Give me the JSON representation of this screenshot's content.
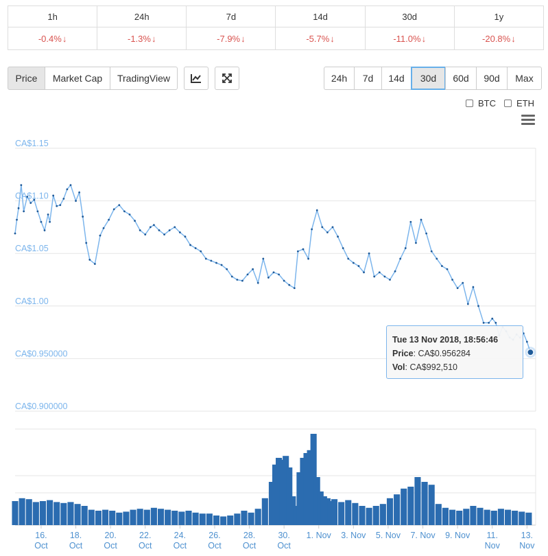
{
  "changes": {
    "periods": [
      "1h",
      "24h",
      "7d",
      "14d",
      "30d",
      "1y"
    ],
    "values": [
      "-0.4%",
      "-1.3%",
      "-7.9%",
      "-5.7%",
      "-11.0%",
      "-20.8%"
    ],
    "arrow": "↓",
    "color": "#d9534f"
  },
  "chart_tabs": [
    "Price",
    "Market Cap",
    "TradingView"
  ],
  "active_chart_tab": "Price",
  "icons": {
    "line_chart": "line-chart-icon",
    "expand": "expand-icon",
    "menu": "hamburger-menu-icon"
  },
  "ranges": [
    "24h",
    "7d",
    "14d",
    "30d",
    "60d",
    "90d",
    "Max"
  ],
  "active_range": "30d",
  "compare": [
    "BTC",
    "ETH"
  ],
  "tooltip": {
    "date": "Tue 13 Nov 2018, 18:56:46",
    "price_label": "Price",
    "price_value": ": CA$0.956284",
    "vol_label": "Vol",
    "vol_value": ": CA$992,510"
  },
  "colors": {
    "line": "#7cb5ec",
    "point": "#1e5a99",
    "volume": "#2b6cb0",
    "grid": "#e6e6e6"
  },
  "chart_data": {
    "type": "line",
    "currency": "CAD",
    "y_ticks": [
      "CA$1.15",
      "CA$1.10",
      "CA$1.05",
      "CA$1.00",
      "CA$0.950000",
      "CA$0.900000"
    ],
    "ylim": [
      0.9,
      1.15
    ],
    "x_ticks": [
      {
        "day": 16,
        "line1": "16.",
        "line2": "Oct"
      },
      {
        "day": 18,
        "line1": "18.",
        "line2": "Oct"
      },
      {
        "day": 20,
        "line1": "20.",
        "line2": "Oct"
      },
      {
        "day": 22,
        "line1": "22.",
        "line2": "Oct"
      },
      {
        "day": 24,
        "line1": "24.",
        "line2": "Oct"
      },
      {
        "day": 26,
        "line1": "26.",
        "line2": "Oct"
      },
      {
        "day": 28,
        "line1": "28.",
        "line2": "Oct"
      },
      {
        "day": 30,
        "line1": "30.",
        "line2": "Oct"
      },
      {
        "day": 32,
        "line1": "1. Nov",
        "line2": ""
      },
      {
        "day": 34,
        "line1": "3. Nov",
        "line2": ""
      },
      {
        "day": 36,
        "line1": "5. Nov",
        "line2": ""
      },
      {
        "day": 38,
        "line1": "7. Nov",
        "line2": ""
      },
      {
        "day": 40,
        "line1": "9. Nov",
        "line2": ""
      },
      {
        "day": 42,
        "line1": "11.",
        "line2": "Nov"
      },
      {
        "day": 44,
        "line1": "13.",
        "line2": "Nov"
      }
    ],
    "price_series": {
      "x": [
        15.0,
        15.1,
        15.2,
        15.35,
        15.5,
        15.7,
        15.9,
        16.1,
        16.3,
        16.5,
        16.7,
        16.9,
        17.0,
        17.2,
        17.4,
        17.6,
        17.8,
        18.0,
        18.2,
        18.5,
        18.7,
        18.9,
        19.1,
        19.3,
        19.6,
        19.9,
        20.1,
        20.4,
        20.7,
        21.0,
        21.3,
        21.6,
        21.9,
        22.2,
        22.5,
        22.8,
        23.0,
        23.3,
        23.6,
        23.9,
        24.2,
        24.5,
        24.8,
        25.1,
        25.4,
        25.7,
        26.0,
        26.3,
        26.6,
        26.9,
        27.2,
        27.5,
        27.8,
        28.1,
        28.4,
        28.7,
        29.0,
        29.3,
        29.6,
        29.9,
        30.2,
        30.5,
        30.8,
        31.1,
        31.3,
        31.6,
        31.9,
        32.1,
        32.4,
        32.7,
        33.0,
        33.3,
        33.6,
        33.9,
        34.2,
        34.5,
        34.8,
        35.1,
        35.4,
        35.7,
        36.0,
        36.3,
        36.6,
        36.9,
        37.2,
        37.5,
        37.8,
        38.1,
        38.4,
        38.7,
        39.0,
        39.3,
        39.6,
        39.9,
        40.2,
        40.5,
        40.8,
        41.1,
        41.4,
        41.7,
        42.0,
        42.3,
        42.5,
        42.7,
        42.9,
        43.1,
        43.3,
        43.5,
        43.7,
        43.9,
        44.1,
        44.3,
        44.5,
        44.7
      ],
      "y": [
        1.069,
        1.082,
        1.093,
        1.115,
        1.09,
        1.104,
        1.098,
        1.101,
        1.09,
        1.08,
        1.072,
        1.087,
        1.08,
        1.105,
        1.095,
        1.096,
        1.102,
        1.111,
        1.115,
        1.1,
        1.108,
        1.085,
        1.06,
        1.044,
        1.04,
        1.067,
        1.074,
        1.082,
        1.092,
        1.096,
        1.09,
        1.087,
        1.081,
        1.072,
        1.068,
        1.075,
        1.077,
        1.072,
        1.068,
        1.072,
        1.075,
        1.07,
        1.066,
        1.058,
        1.055,
        1.052,
        1.045,
        1.043,
        1.041,
        1.039,
        1.035,
        1.028,
        1.025,
        1.024,
        1.03,
        1.035,
        1.022,
        1.045,
        1.027,
        1.032,
        1.03,
        1.024,
        1.02,
        1.017,
        1.052,
        1.054,
        1.045,
        1.073,
        1.091,
        1.075,
        1.07,
        1.075,
        1.066,
        1.055,
        1.045,
        1.041,
        1.038,
        1.032,
        1.05,
        1.028,
        1.032,
        1.028,
        1.025,
        1.033,
        1.045,
        1.055,
        1.08,
        1.06,
        1.082,
        1.069,
        1.052,
        1.045,
        1.038,
        1.035,
        1.025,
        1.017,
        1.022,
        1.002,
        1.018,
        1.0,
        0.984,
        0.984,
        0.988,
        0.984,
        0.972,
        0.98,
        0.976,
        0.97,
        0.968,
        0.973,
        0.97,
        0.974,
        0.966,
        0.956
      ]
    },
    "volume_series": {
      "x": [
        15.0,
        15.4,
        15.8,
        16.2,
        16.6,
        17.0,
        17.4,
        17.8,
        18.2,
        18.6,
        19.0,
        19.4,
        19.8,
        20.2,
        20.6,
        21.0,
        21.4,
        21.8,
        22.2,
        22.6,
        23.0,
        23.4,
        23.8,
        24.2,
        24.6,
        25.0,
        25.4,
        25.8,
        26.2,
        26.6,
        27.0,
        27.4,
        27.8,
        28.2,
        28.6,
        29.0,
        29.4,
        29.8,
        30.0,
        30.2,
        30.4,
        30.6,
        30.8,
        31.0,
        31.2,
        31.4,
        31.6,
        31.8,
        32.0,
        32.2,
        32.4,
        32.6,
        32.8,
        33.0,
        33.2,
        33.4,
        33.8,
        34.2,
        34.6,
        35.0,
        35.4,
        35.8,
        36.2,
        36.6,
        37.0,
        37.4,
        37.8,
        38.2,
        38.6,
        39.0,
        39.4,
        39.8,
        40.2,
        40.6,
        41.0,
        41.4,
        41.8,
        42.2,
        42.6,
        43.0,
        43.4,
        43.8,
        44.2,
        44.6
      ],
      "rel": [
        0.25,
        0.28,
        0.27,
        0.24,
        0.25,
        0.26,
        0.24,
        0.23,
        0.24,
        0.22,
        0.2,
        0.16,
        0.15,
        0.16,
        0.15,
        0.13,
        0.14,
        0.16,
        0.17,
        0.16,
        0.18,
        0.17,
        0.16,
        0.15,
        0.14,
        0.15,
        0.13,
        0.12,
        0.12,
        0.1,
        0.09,
        0.1,
        0.12,
        0.15,
        0.13,
        0.17,
        0.28,
        0.45,
        0.63,
        0.7,
        0.68,
        0.72,
        0.6,
        0.3,
        0.2,
        0.55,
        0.7,
        0.75,
        0.78,
        0.95,
        0.5,
        0.35,
        0.3,
        0.28,
        0.25,
        0.27,
        0.24,
        0.26,
        0.23,
        0.2,
        0.18,
        0.2,
        0.22,
        0.28,
        0.32,
        0.38,
        0.4,
        0.5,
        0.45,
        0.42,
        0.22,
        0.18,
        0.16,
        0.15,
        0.17,
        0.2,
        0.18,
        0.16,
        0.15,
        0.17,
        0.16,
        0.15,
        0.14,
        0.13
      ]
    },
    "xlim": [
      15.0,
      45.0
    ],
    "grid": true,
    "legend": "none"
  }
}
